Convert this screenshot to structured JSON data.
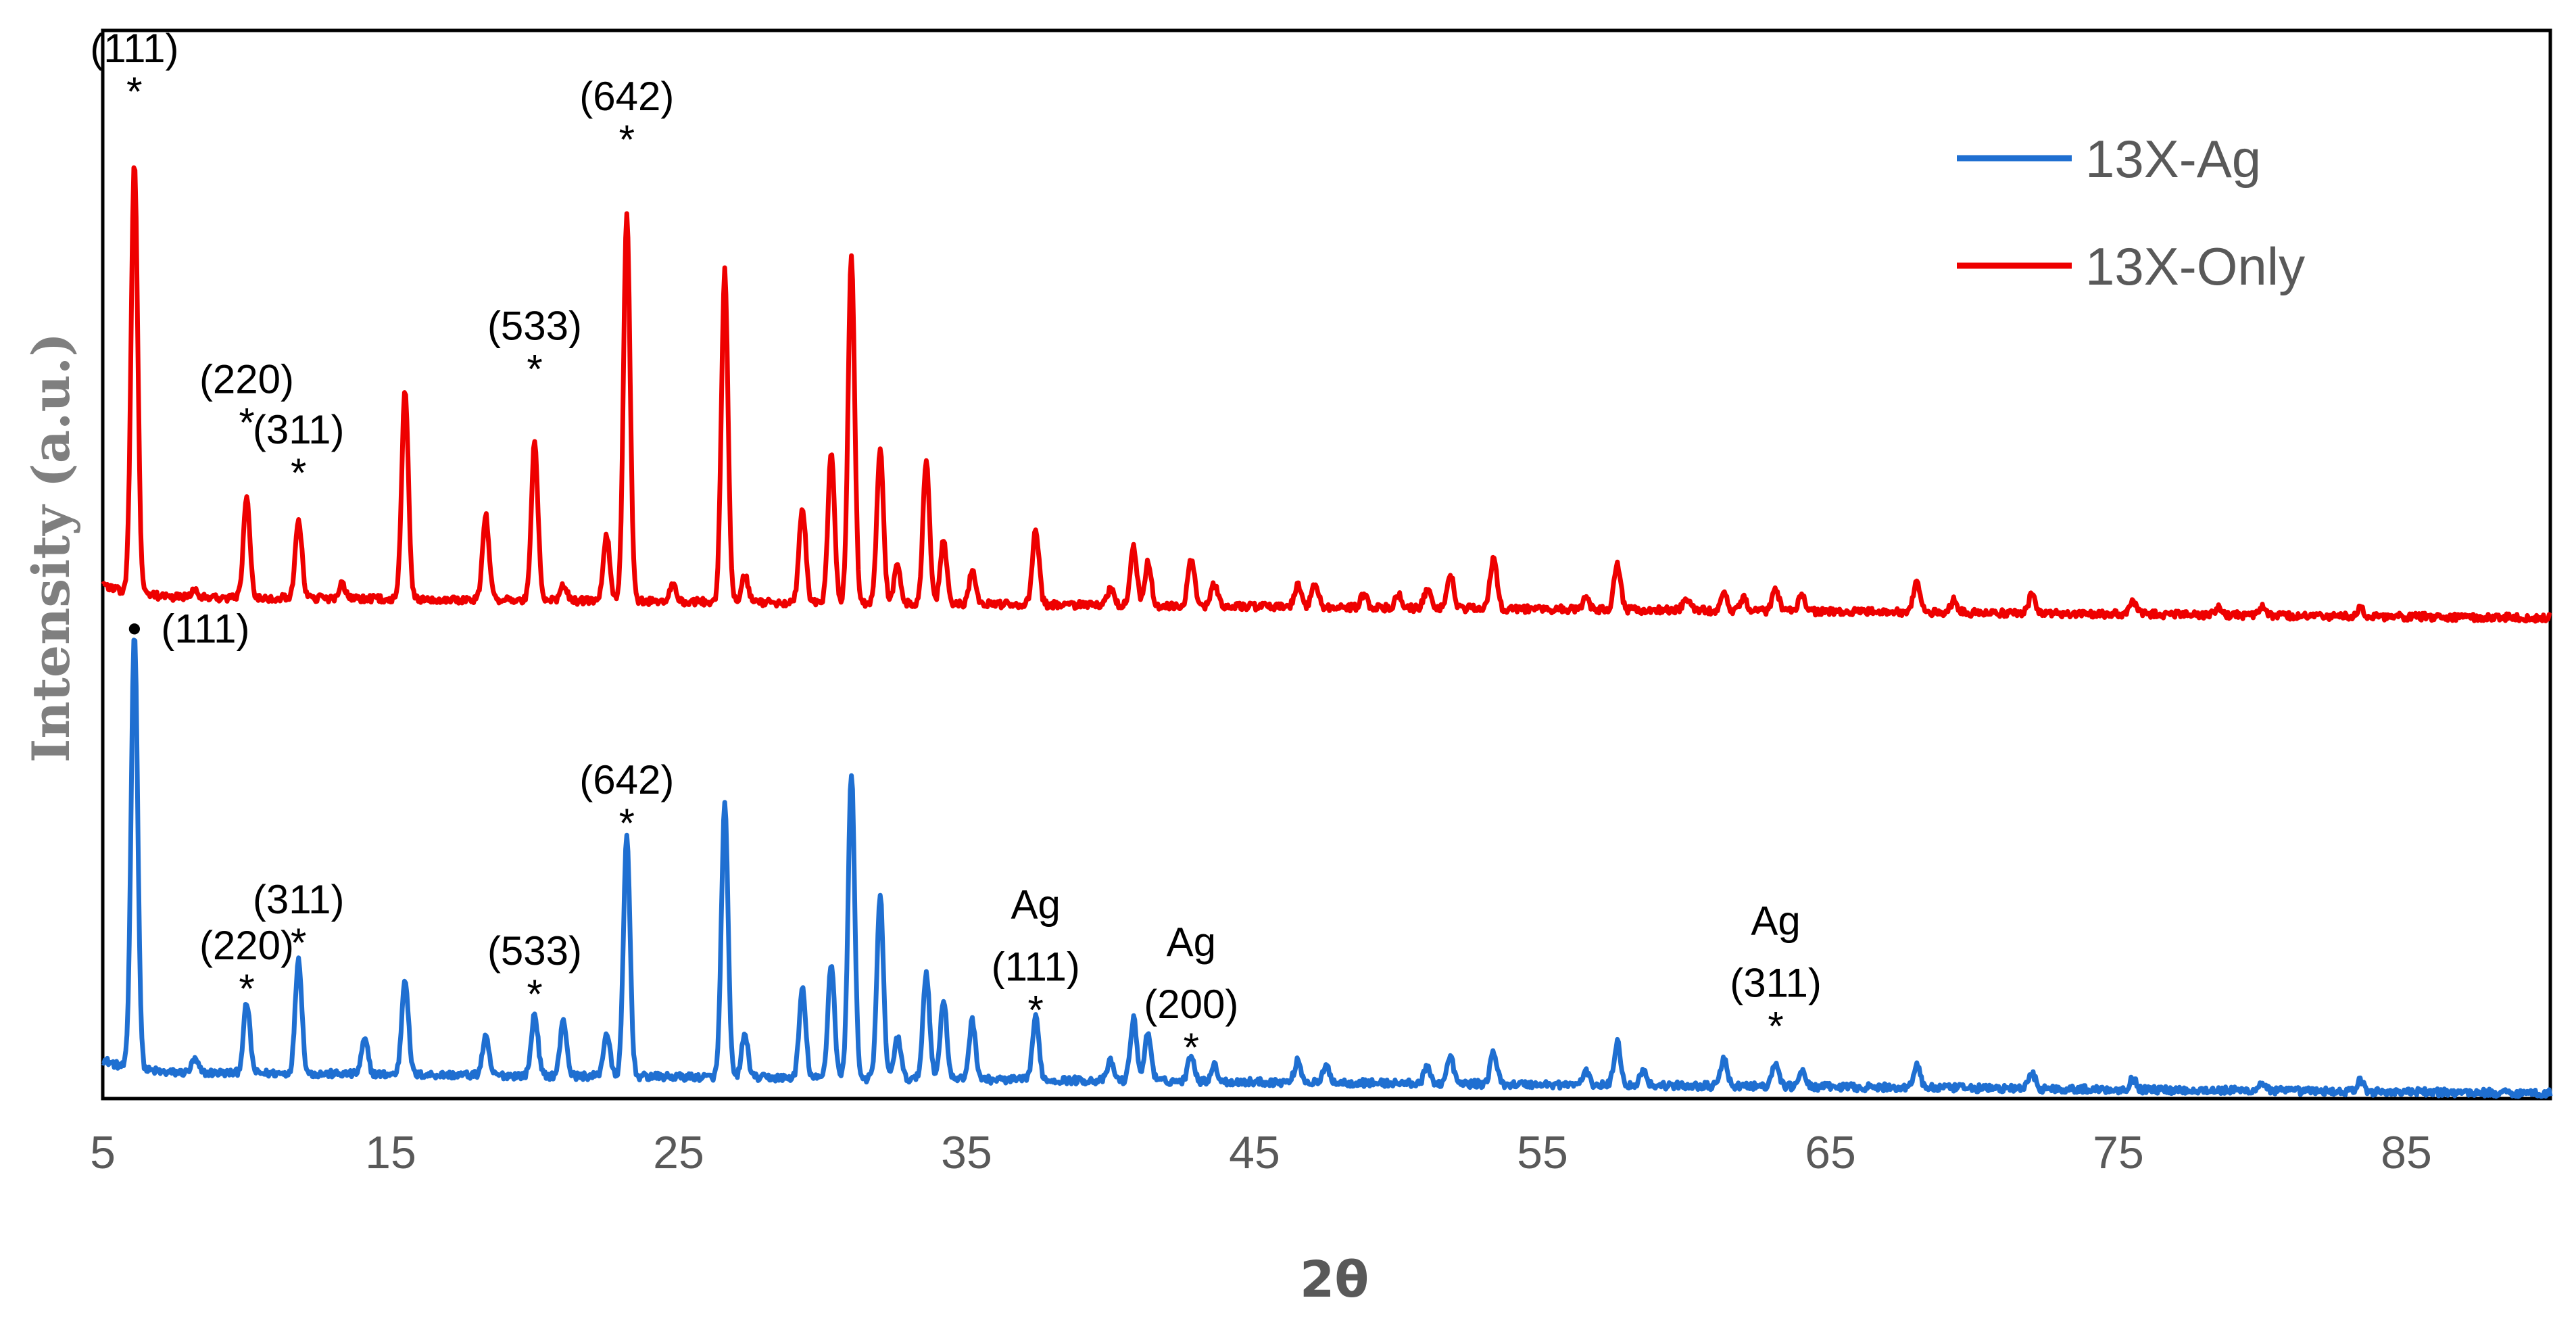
{
  "chart_data": {
    "type": "line",
    "title": "",
    "xlabel": "2θ",
    "ylabel": "Intensity (a.u.)",
    "xlim": [
      5,
      90
    ],
    "ylim": [
      0,
      100
    ],
    "x_ticks": [
      "5",
      "15",
      "25",
      "35",
      "45",
      "55",
      "65",
      "75",
      "85"
    ],
    "grid": false,
    "legend_position": "top-right",
    "series": [
      {
        "name": "13X-Ag",
        "color": "#1F6FD1",
        "baseline_start": 2.5,
        "baseline_end": 0.5,
        "peaks": [
          [
            6.1,
            41
          ],
          [
            8.2,
            1.2
          ],
          [
            10.0,
            6.5
          ],
          [
            11.8,
            10.8
          ],
          [
            14.1,
            3.2
          ],
          [
            15.5,
            9.0
          ],
          [
            18.3,
            3.5
          ],
          [
            20.0,
            5.8
          ],
          [
            21.0,
            5.2
          ],
          [
            22.5,
            4.0
          ],
          [
            23.2,
            22.5
          ],
          [
            26.6,
            25.5
          ],
          [
            27.3,
            4.0
          ],
          [
            29.3,
            8.3
          ],
          [
            30.3,
            10.8
          ],
          [
            31.0,
            28.5
          ],
          [
            32.0,
            17.0
          ],
          [
            32.6,
            4.0
          ],
          [
            33.6,
            10.0
          ],
          [
            34.2,
            7.5
          ],
          [
            35.2,
            5.5
          ],
          [
            37.4,
            5.8
          ],
          [
            40.0,
            1.8
          ],
          [
            40.8,
            5.8
          ],
          [
            41.3,
            4.5
          ],
          [
            42.8,
            2.5
          ],
          [
            43.6,
            1.5
          ],
          [
            46.5,
            2.0
          ],
          [
            47.5,
            1.5
          ],
          [
            51.0,
            1.5
          ],
          [
            51.8,
            2.5
          ],
          [
            53.3,
            3.0
          ],
          [
            56.5,
            1.2
          ],
          [
            57.6,
            4.0
          ],
          [
            58.5,
            1.4
          ],
          [
            61.3,
            2.5
          ],
          [
            63.1,
            2.2
          ],
          [
            64.0,
            1.5
          ],
          [
            68.0,
            2.2
          ],
          [
            72.0,
            1.5
          ],
          [
            75.5,
            1.0
          ],
          [
            80.0,
            0.8
          ],
          [
            83.4,
            1.0
          ]
        ]
      },
      {
        "name": "13X-Only",
        "color": "#EE0000",
        "baseline_start": 47,
        "baseline_end": 45,
        "peaks": [
          [
            6.1,
            40.5
          ],
          [
            8.2,
            0.8
          ],
          [
            10.0,
            9.5
          ],
          [
            11.8,
            7.5
          ],
          [
            13.3,
            1.3
          ],
          [
            15.5,
            19.5
          ],
          [
            18.3,
            8.0
          ],
          [
            20.0,
            14.8
          ],
          [
            21.0,
            1.5
          ],
          [
            22.5,
            6.0
          ],
          [
            23.2,
            36.5
          ],
          [
            24.8,
            1.5
          ],
          [
            26.6,
            31.0
          ],
          [
            27.3,
            2.5
          ],
          [
            29.3,
            9.0
          ],
          [
            30.3,
            14.0
          ],
          [
            31.0,
            32.5
          ],
          [
            32.0,
            14.5
          ],
          [
            32.6,
            3.5
          ],
          [
            33.6,
            13.5
          ],
          [
            34.2,
            6.0
          ],
          [
            35.2,
            3.0
          ],
          [
            37.4,
            7.0
          ],
          [
            40.0,
            1.5
          ],
          [
            40.8,
            5.5
          ],
          [
            41.3,
            4.0
          ],
          [
            42.8,
            4.5
          ],
          [
            43.6,
            2.0
          ],
          [
            46.5,
            2.0
          ],
          [
            47.1,
            2.3
          ],
          [
            48.8,
            1.2
          ],
          [
            50.0,
            1.2
          ],
          [
            51.0,
            1.8
          ],
          [
            51.8,
            3.3
          ],
          [
            53.3,
            4.8
          ],
          [
            56.5,
            1.0
          ],
          [
            57.6,
            4.3
          ],
          [
            60.0,
            1.2
          ],
          [
            61.3,
            1.5
          ],
          [
            62.0,
            1.2
          ],
          [
            63.1,
            2.0
          ],
          [
            64.0,
            1.5
          ],
          [
            68.0,
            3.0
          ],
          [
            69.3,
            1.2
          ],
          [
            72.0,
            1.8
          ],
          [
            75.5,
            1.2
          ],
          [
            78.5,
            0.7
          ],
          [
            80.0,
            0.9
          ],
          [
            83.4,
            0.9
          ]
        ]
      }
    ],
    "annotations": [
      {
        "lines": [
          "(111)"
        ],
        "marker": "*",
        "x": 6.1,
        "y": 94.5,
        "series": "13X-Only"
      },
      {
        "lines": [
          "(220)"
        ],
        "marker": "*",
        "x": 10.0,
        "y": 63.5,
        "series": "13X-Only"
      },
      {
        "lines": [
          "(311)"
        ],
        "marker": "*",
        "x": 11.8,
        "y": 58.8,
        "series": "13X-Only"
      },
      {
        "lines": [
          "(533)"
        ],
        "marker": "*",
        "x": 20.0,
        "y": 68.5,
        "series": "13X-Only"
      },
      {
        "lines": [
          "(642)"
        ],
        "marker": "*",
        "x": 23.2,
        "y": 90.0,
        "series": "13X-Only"
      },
      {
        "lines": [
          "(111)"
        ],
        "marker": "•",
        "x": 6.1,
        "y": 44.2,
        "series": "13X-Ag"
      },
      {
        "lines": [
          "(220)"
        ],
        "marker": "*",
        "x": 10.0,
        "y": 10.5,
        "series": "13X-Ag"
      },
      {
        "lines": [
          "(311)"
        ],
        "marker": "*",
        "x": 11.8,
        "y": 14.8,
        "series": "13X-Ag"
      },
      {
        "lines": [
          "(533)"
        ],
        "marker": "*",
        "x": 20.0,
        "y": 10.0,
        "series": "13X-Ag"
      },
      {
        "lines": [
          "(642)"
        ],
        "marker": "*",
        "x": 23.2,
        "y": 26.0,
        "series": "13X-Ag"
      },
      {
        "lines": [
          "Ag",
          "(111)"
        ],
        "marker": "*",
        "x": 37.4,
        "y": 8.5,
        "series": "13X-Ag"
      },
      {
        "lines": [
          "Ag",
          "(200)"
        ],
        "marker": "*",
        "x": 42.8,
        "y": 5.0,
        "series": "13X-Ag"
      },
      {
        "lines": [
          "Ag",
          "(311)"
        ],
        "marker": "*",
        "x": 63.1,
        "y": 7.0,
        "series": "13X-Ag"
      }
    ]
  }
}
